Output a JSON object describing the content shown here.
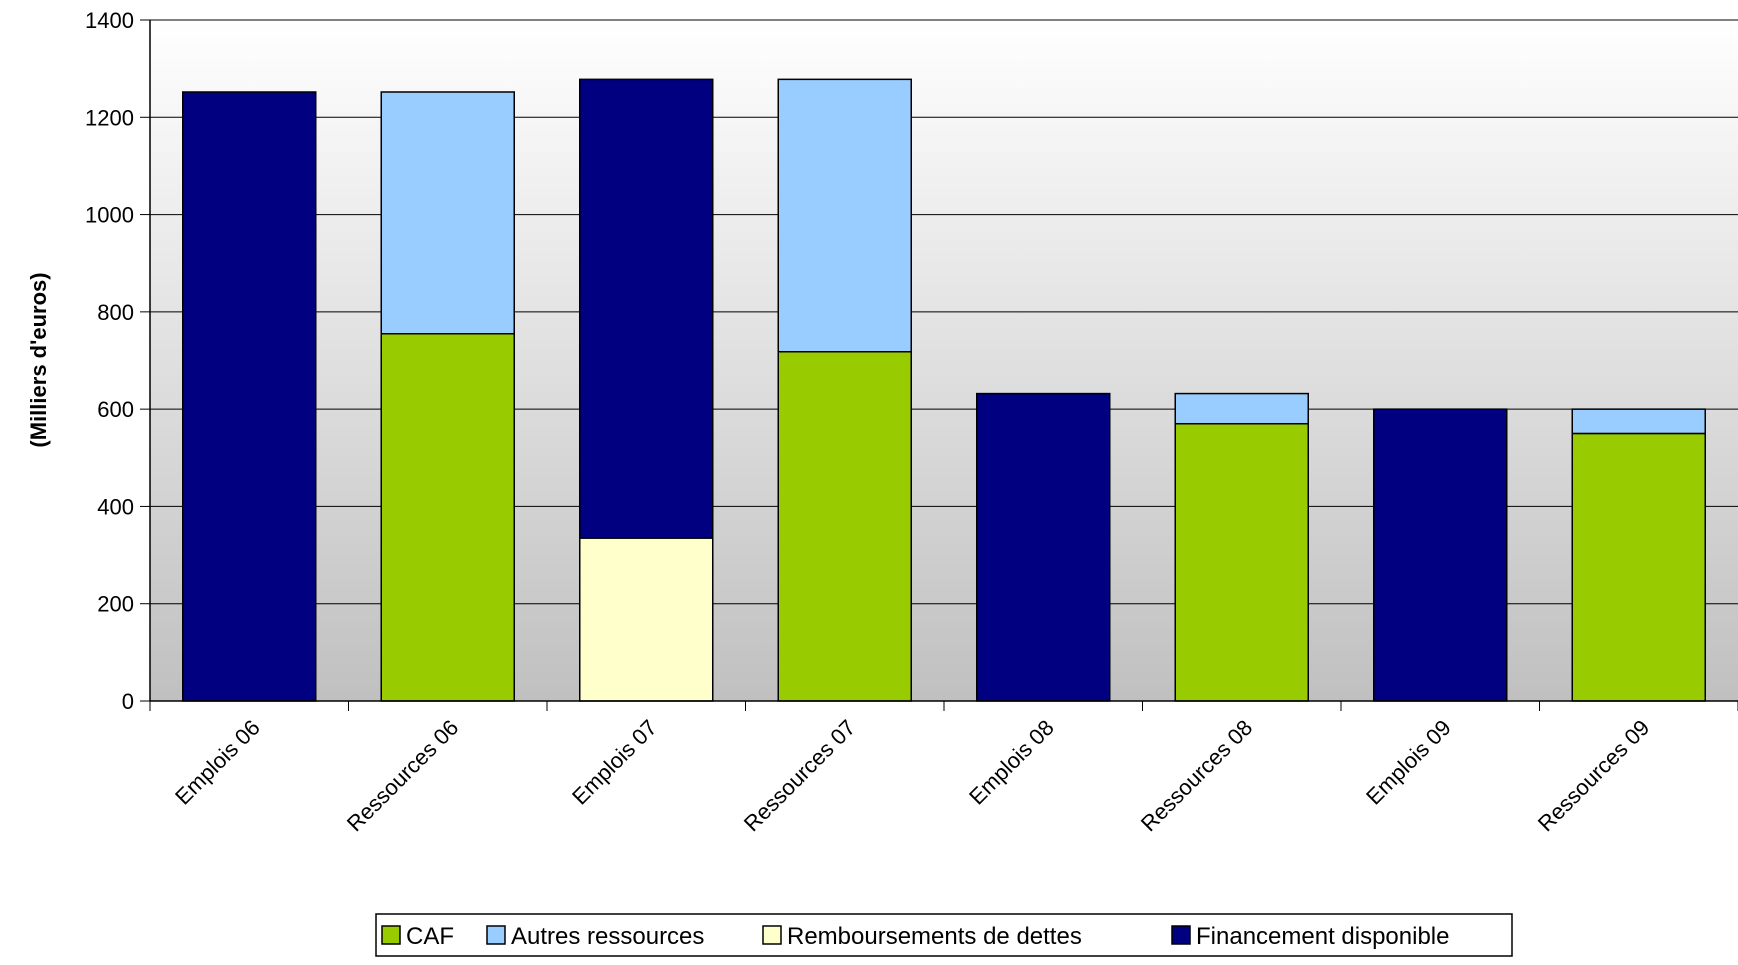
{
  "chart_data": {
    "type": "bar",
    "stacked": true,
    "title": "",
    "xlabel": "",
    "ylabel": "(Milliers d'euros)",
    "ylim": [
      0,
      1400
    ],
    "yticks": [
      0,
      200,
      400,
      600,
      800,
      1000,
      1200,
      1400
    ],
    "grid": true,
    "legend_position": "bottom",
    "categories": [
      "Emplois 06",
      "Ressources 06",
      "Emplois 07",
      "Ressources 07",
      "Emplois 08",
      "Ressources 08",
      "Emplois 09",
      "Ressources 09"
    ],
    "series": [
      {
        "name": "CAF",
        "color": "#99CC00",
        "values": [
          0,
          755,
          0,
          718,
          0,
          570,
          0,
          550
        ]
      },
      {
        "name": "Autres ressources",
        "color": "#99CCFF",
        "values": [
          0,
          497,
          0,
          560,
          0,
          62,
          0,
          50
        ]
      },
      {
        "name": "Remboursements de dettes",
        "color": "#FFFFCC",
        "values": [
          0,
          0,
          335,
          0,
          0,
          0,
          0,
          0
        ]
      },
      {
        "name": "Financement disponible",
        "color": "#000080",
        "values": [
          1252,
          0,
          943,
          0,
          632,
          0,
          600,
          0
        ]
      }
    ]
  }
}
